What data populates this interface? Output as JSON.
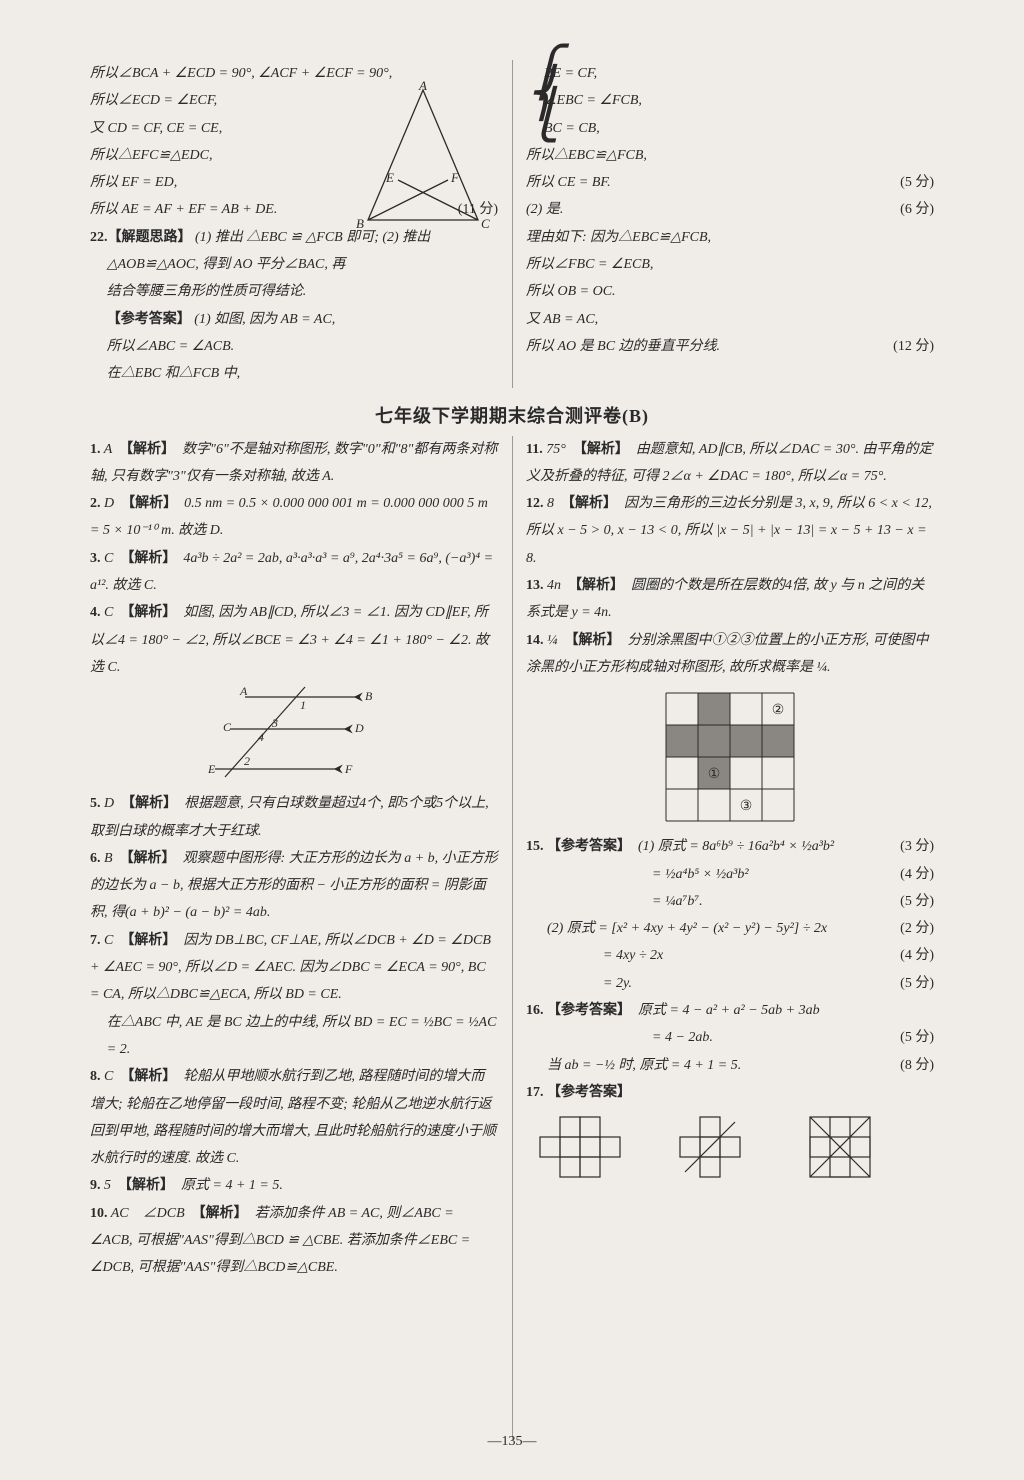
{
  "doc": {
    "page_number": "—135—",
    "background_color": "#f0ede8",
    "text_color": "#2a2a2a",
    "body_fontsize": 14,
    "title_fontsize": 18
  },
  "top": {
    "left": [
      "所以∠BCA + ∠ECD = 90°, ∠ACF + ∠ECF = 90°,",
      "所以∠ECD = ∠ECF,",
      "又 CD = CF, CE = CE,",
      "所以△EFC≌△EDC,",
      "所以 EF = ED,",
      "所以 AE = AF + EF = AB + DE."
    ],
    "left_score": "(11 分)",
    "q22_label": "22.【解题思路】",
    "q22_body1": "(1) 推出 △EBC ≌ △FCB 即可; (2) 推出",
    "q22_body2": "△AOB≌△AOC, 得到 AO 平分∠BAC, 再",
    "q22_body3": "结合等腰三角形的性质可得结论.",
    "q22_ans_label": "【参考答案】",
    "q22_ans1": "(1) 如图, 因为 AB = AC,",
    "q22_ans2": "所以∠ABC = ∠ACB.",
    "q22_ans3": "在△EBC 和△FCB 中,",
    "right_brace": [
      "BE = CF,",
      "∠EBC = ∠FCB,",
      "BC = CB,"
    ],
    "right": [
      "所以△EBC≌△FCB,",
      "所以 CE = BF.",
      "(2) 是.",
      "理由如下: 因为△EBC≌△FCB,",
      "所以∠FBC = ∠ECB,",
      "所以 OB = OC.",
      "又 AB = AC,",
      "所以 AO 是 BC 边的垂直平分线."
    ],
    "right_scores": {
      "1": "(5 分)",
      "2": "(6 分)",
      "7": "(12 分)"
    },
    "triangle": {
      "stroke": "#2a2a2a",
      "labels": {
        "A": "A",
        "B": "B",
        "C": "C",
        "E": "E",
        "F": "F"
      }
    }
  },
  "title": "七年级下学期期末综合测评卷(B)",
  "left_answers": {
    "a1": {
      "num": "1.",
      "ans": "A",
      "tag": "【解析】",
      "body": "数字\"6\"不是轴对称图形, 数字\"0\"和\"8\"都有两条对称轴, 只有数字\"3\"仅有一条对称轴, 故选 A."
    },
    "a2": {
      "num": "2.",
      "ans": "D",
      "tag": "【解析】",
      "body": "0.5 nm = 0.5 × 0.000 000 001 m = 0.000 000 000 5 m = 5 × 10⁻¹⁰ m. 故选 D."
    },
    "a3": {
      "num": "3.",
      "ans": "C",
      "tag": "【解析】",
      "body": "4a³b ÷ 2a² = 2ab, a³·a³·a³ = a⁹, 2a⁴·3a⁵ = 6a⁹, (−a³)⁴ = a¹². 故选 C."
    },
    "a4": {
      "num": "4.",
      "ans": "C",
      "tag": "【解析】",
      "body": "如图, 因为 AB∥CD, 所以∠3 = ∠1. 因为 CD∥EF, 所以∠4 = 180° − ∠2, 所以∠BCE = ∠3 + ∠4 = ∠1 + 180° − ∠2. 故选 C."
    },
    "a4_diagram_labels": {
      "A": "A",
      "B": "B",
      "C": "C",
      "D": "D",
      "E": "E",
      "F": "F",
      "n1": "1",
      "n2": "2",
      "n3": "3",
      "n4": "4"
    },
    "a5": {
      "num": "5.",
      "ans": "D",
      "tag": "【解析】",
      "body": "根据题意, 只有白球数量超过4个, 即5个或5个以上, 取到白球的概率才大于红球."
    },
    "a6": {
      "num": "6.",
      "ans": "B",
      "tag": "【解析】",
      "body": "观察题中图形得: 大正方形的边长为 a + b, 小正方形的边长为 a − b, 根据大正方形的面积 − 小正方形的面积 = 阴影面积, 得(a + b)² − (a − b)² = 4ab."
    },
    "a7": {
      "num": "7.",
      "ans": "C",
      "tag": "【解析】",
      "body": "因为 DB⊥BC, CF⊥AE, 所以∠DCB + ∠D = ∠DCB + ∠AEC = 90°, 所以∠D = ∠AEC. 因为∠DBC = ∠ECA = 90°, BC = CA, 所以△DBC≌△ECA, 所以 BD = CE.",
      "body2": "在△ABC 中, AE 是 BC 边上的中线, 所以 BD = EC = ½BC = ½AC = 2."
    },
    "a8": {
      "num": "8.",
      "ans": "C",
      "tag": "【解析】",
      "body": "轮船从甲地顺水航行到乙地, 路程随时间的增大而增大; 轮船在乙地停留一段时间, 路程不变; 轮船从乙地逆水航行返回到甲地, 路程随时间的增大而增大, 且此时轮船航行的速度小于顺水航行时的速度. 故选 C."
    },
    "a9": {
      "num": "9.",
      "ans": "5",
      "tag": "【解析】",
      "body": "原式 = 4 + 1 = 5."
    },
    "a10": {
      "num": "10.",
      "ans": "AC　∠DCB",
      "tag": "【解析】",
      "body": "若添加条件 AB = AC, 则∠ABC = ∠ACB, 可根据\"AAS\"得到△BCD ≌ △CBE. 若添加条件∠EBC = ∠DCB, 可根据\"AAS\"得到△BCD≌△CBE."
    }
  },
  "right_answers": {
    "a11": {
      "num": "11.",
      "ans": "75°",
      "tag": "【解析】",
      "body": "由题意知, AD∥CB, 所以∠DAC = 30°. 由平角的定义及折叠的特征, 可得 2∠α + ∠DAC = 180°, 所以∠α = 75°."
    },
    "a12": {
      "num": "12.",
      "ans": "8",
      "tag": "【解析】",
      "body": "因为三角形的三边长分别是 3, x, 9, 所以 6 < x < 12, 所以 x − 5 > 0, x − 13 < 0, 所以 |x − 5| + |x − 13| = x − 5 + 13 − x = 8."
    },
    "a13": {
      "num": "13.",
      "ans": "4n",
      "tag": "【解析】",
      "body": "圆圈的个数是所在层数的4倍, 故 y 与 n 之间的关系式是 y = 4n."
    },
    "a14": {
      "num": "14.",
      "ans": "¼",
      "tag": "【解析】",
      "body": "分别涂黑图中①②③位置上的小正方形, 可使图中涂黑的小正方形构成轴对称图形, 故所求概率是 ¼."
    },
    "a14_grid": {
      "rows": 4,
      "cols": 4,
      "cell_size": 32,
      "stroke": "#2a2a2a",
      "shaded_fill": "#8a8782",
      "shaded_cells": [
        [
          0,
          1
        ],
        [
          1,
          0
        ],
        [
          1,
          1
        ],
        [
          1,
          2
        ],
        [
          1,
          3
        ],
        [
          2,
          1
        ]
      ],
      "labels": {
        "c2": "②",
        "c1": "①",
        "c3": "③"
      },
      "label_positions": {
        "c2": [
          0,
          3
        ],
        "c1": [
          2,
          1
        ],
        "c3": [
          3,
          2
        ]
      }
    },
    "a15": {
      "num": "15.",
      "tag": "【参考答案】",
      "lines": [
        {
          "t": "(1) 原式 = 8a⁶b⁹ ÷ 16a²b⁴ × ½a³b²",
          "s": "(3 分)"
        },
        {
          "t": "= ½a⁴b⁵ × ½a³b²",
          "s": "(4 分)"
        },
        {
          "t": "= ¼a⁷b⁷.",
          "s": "(5 分)"
        },
        {
          "t": "(2) 原式 = [x² + 4xy + 4y² − (x² − y²) − 5y²] ÷ 2x",
          "s": "(2 分)"
        },
        {
          "t": "= 4xy ÷ 2x",
          "s": "(4 分)"
        },
        {
          "t": "= 2y.",
          "s": "(5 分)"
        }
      ]
    },
    "a16": {
      "num": "16.",
      "tag": "【参考答案】",
      "l1": "原式 = 4 − a² + a² − 5ab + 3ab",
      "l2": "= 4 − 2ab.",
      "s2": "(5 分)",
      "l3": "当 ab = −½ 时, 原式 = 4 + 1 = 5.",
      "s3": "(8 分)"
    },
    "a17": {
      "num": "17.",
      "tag": "【参考答案】"
    },
    "a17_shapes": {
      "stroke": "#2a2a2a"
    }
  }
}
